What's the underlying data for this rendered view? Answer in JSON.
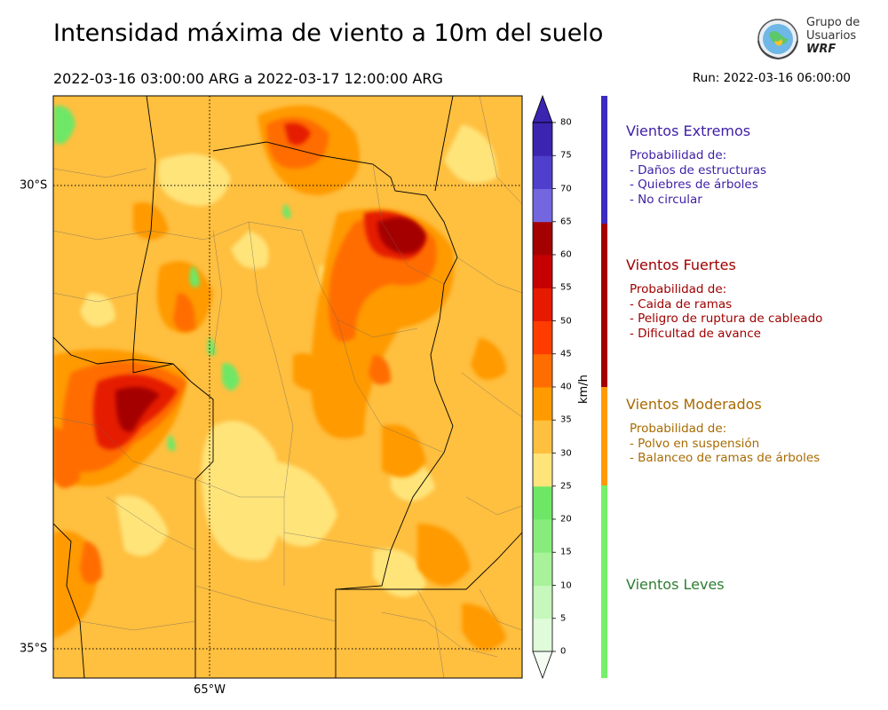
{
  "header": {
    "title": "Intensidad máxima de viento a 10m del suelo",
    "period": "2022-03-16 03:00:00 ARG  a  2022-03-17 12:00:00 ARG",
    "run": "Run: 2022-03-16 06:00:00"
  },
  "logo": {
    "line1": "Grupo de",
    "line2": "Usuarios",
    "line3": "WRF"
  },
  "map": {
    "lat_labels": [
      "30°S",
      "35°S"
    ],
    "lon_labels": [
      "65°W"
    ]
  },
  "colorbar": {
    "unit": "km/h",
    "ticks": [
      "0",
      "5",
      "10",
      "15",
      "20",
      "25",
      "30",
      "35",
      "40",
      "45",
      "50",
      "55",
      "60",
      "65",
      "70",
      "75",
      "80"
    ],
    "colors": [
      "#f5fdf3",
      "#dffbd9",
      "#c6f7bd",
      "#a8f29a",
      "#88ec7d",
      "#6ee766",
      "#ffe47a",
      "#ffbf3f",
      "#ff9a00",
      "#ff6d00",
      "#ff3c00",
      "#e51a00",
      "#c60000",
      "#a50000",
      "#7366df",
      "#4f3fcc",
      "#3a24b0"
    ]
  },
  "categories": [
    {
      "title": "Vientos Extremos",
      "color": "#3d1fa6",
      "lines": [
        "Probabilidad de:",
        "- Daños de estructuras",
        "- Quiebres de árboles",
        "- No circular"
      ]
    },
    {
      "title": "Vientos Fuertes",
      "color": "#a00000",
      "lines": [
        "Probabilidad de:",
        "- Caida de ramas",
        "- Peligro de ruptura de cableado",
        "- Dificultad de avance"
      ]
    },
    {
      "title": "Vientos Moderados",
      "color": "#a86a00",
      "lines": [
        "Probabilidad de:",
        "- Polvo en suspensión",
        "- Balanceo de ramas de árboles"
      ]
    },
    {
      "title": "Vientos Leves",
      "color": "#2e7d32",
      "lines": []
    }
  ],
  "category_bar_colors": [
    "#3d2cbf",
    "#a40000",
    "#ff9a00",
    "#74f06b"
  ]
}
